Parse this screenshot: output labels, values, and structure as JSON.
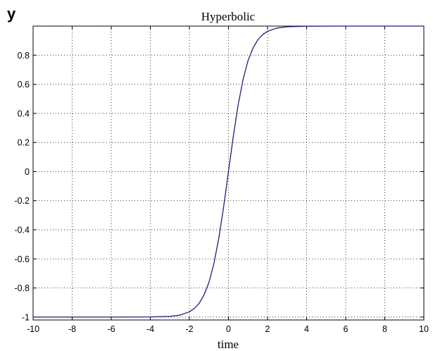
{
  "chart_data": {
    "type": "line",
    "title": "Hyperbolic",
    "xlabel": "time",
    "ylabel": "y",
    "xlim": [
      -10,
      10
    ],
    "ylim": [
      -1.02,
      1.0
    ],
    "x_ticks": [
      -10,
      -8,
      -6,
      -4,
      -2,
      0,
      2,
      4,
      6,
      8,
      10
    ],
    "y_ticks": [
      -1,
      -0.8,
      -0.6,
      -0.4,
      -0.2,
      0,
      0.2,
      0.4,
      0.6,
      0.8
    ],
    "grid": true,
    "series": [
      {
        "color": "#1f1f7a",
        "x": [
          -10,
          -8,
          -6,
          -4,
          -3,
          -2.5,
          -2,
          -1.75,
          -1.5,
          -1.25,
          -1,
          -0.75,
          -0.5,
          -0.25,
          0,
          0.25,
          0.5,
          0.75,
          1,
          1.25,
          1.5,
          1.75,
          2,
          2.5,
          3,
          4,
          6,
          8,
          10
        ],
        "y": [
          -1,
          -1,
          -1,
          -0.999,
          -0.995,
          -0.987,
          -0.964,
          -0.941,
          -0.905,
          -0.848,
          -0.762,
          -0.635,
          -0.462,
          -0.245,
          0,
          0.245,
          0.462,
          0.635,
          0.762,
          0.848,
          0.905,
          0.941,
          0.964,
          0.987,
          0.995,
          0.999,
          1,
          1,
          1
        ]
      }
    ]
  }
}
